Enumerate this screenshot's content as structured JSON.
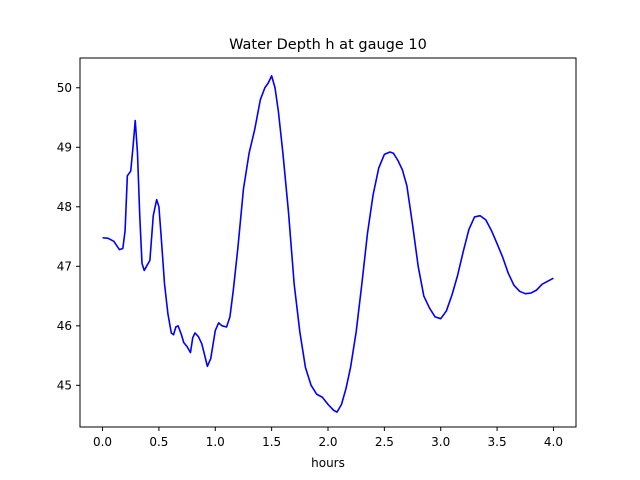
{
  "chart_data": {
    "type": "line",
    "title": "Water Depth h at gauge 10",
    "xlabel": "hours",
    "ylabel": "",
    "xlim": [
      -0.2,
      4.2
    ],
    "ylim": [
      44.3,
      50.5
    ],
    "xticks": [
      0.0,
      0.5,
      1.0,
      1.5,
      2.0,
      2.5,
      3.0,
      3.5,
      4.0
    ],
    "xtick_labels": [
      "0.0",
      "0.5",
      "1.0",
      "1.5",
      "2.0",
      "2.5",
      "3.0",
      "3.5",
      "4.0"
    ],
    "yticks": [
      45,
      46,
      47,
      48,
      49,
      50
    ],
    "ytick_labels": [
      "45",
      "46",
      "47",
      "48",
      "49",
      "50"
    ],
    "grid": false,
    "series": [
      {
        "color": "#0000ff",
        "x": [
          0.0,
          0.05,
          0.1,
          0.15,
          0.18,
          0.2,
          0.22,
          0.25,
          0.27,
          0.29,
          0.31,
          0.33,
          0.35,
          0.37,
          0.39,
          0.42,
          0.45,
          0.48,
          0.5,
          0.52,
          0.55,
          0.58,
          0.61,
          0.63,
          0.65,
          0.67,
          0.7,
          0.72,
          0.75,
          0.78,
          0.8,
          0.82,
          0.85,
          0.88,
          0.9,
          0.93,
          0.96,
          1.0,
          1.03,
          1.06,
          1.1,
          1.13,
          1.16,
          1.2,
          1.25,
          1.3,
          1.35,
          1.4,
          1.44,
          1.47,
          1.5,
          1.53,
          1.56,
          1.6,
          1.65,
          1.7,
          1.75,
          1.8,
          1.85,
          1.9,
          1.95,
          2.0,
          2.05,
          2.08,
          2.12,
          2.16,
          2.2,
          2.25,
          2.3,
          2.35,
          2.4,
          2.45,
          2.5,
          2.55,
          2.58,
          2.62,
          2.66,
          2.7,
          2.75,
          2.8,
          2.85,
          2.9,
          2.95,
          3.0,
          3.05,
          3.1,
          3.15,
          3.2,
          3.25,
          3.3,
          3.35,
          3.4,
          3.45,
          3.5,
          3.55,
          3.6,
          3.65,
          3.7,
          3.75,
          3.8,
          3.85,
          3.9,
          3.95,
          4.0
        ],
        "y": [
          47.48,
          47.47,
          47.42,
          47.28,
          47.3,
          47.6,
          48.52,
          48.6,
          49.0,
          49.45,
          48.9,
          47.85,
          47.05,
          46.93,
          47.0,
          47.1,
          47.85,
          48.12,
          48.0,
          47.5,
          46.7,
          46.2,
          45.88,
          45.85,
          45.98,
          46.0,
          45.85,
          45.72,
          45.65,
          45.55,
          45.8,
          45.88,
          45.82,
          45.7,
          45.55,
          45.32,
          45.45,
          45.92,
          46.05,
          46.0,
          45.98,
          46.15,
          46.6,
          47.3,
          48.3,
          48.9,
          49.3,
          49.8,
          50.0,
          50.08,
          50.2,
          50.0,
          49.6,
          48.9,
          47.9,
          46.7,
          45.9,
          45.3,
          45.0,
          44.85,
          44.8,
          44.68,
          44.58,
          44.55,
          44.68,
          44.95,
          45.3,
          45.9,
          46.7,
          47.55,
          48.2,
          48.65,
          48.88,
          48.92,
          48.9,
          48.78,
          48.62,
          48.35,
          47.7,
          47.0,
          46.5,
          46.3,
          46.15,
          46.12,
          46.25,
          46.52,
          46.85,
          47.25,
          47.62,
          47.83,
          47.85,
          47.78,
          47.6,
          47.38,
          47.15,
          46.88,
          46.68,
          46.58,
          46.54,
          46.55,
          46.6,
          46.7,
          46.75,
          46.8
        ]
      }
    ]
  }
}
